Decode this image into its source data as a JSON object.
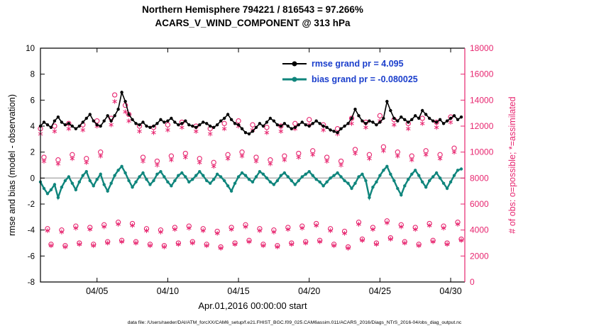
{
  "chart_data": {
    "type": "line",
    "title": "Northern Hemisphere 794221 / 816543 = 97.266%",
    "subtitle": "ACARS_V_WIND_COMPONENT @ 313 hPa",
    "xlabel": "Apr.01,2016 00:00:00 start",
    "ylabel_left": "rmse and bias (model - observation)",
    "ylabel_right": "# of obs: o=possible; *=assimilated",
    "footnote": "data file: /Users/raeder/DAI/ATM_forcXX/CAM6_setup/f.e21.FHIST_BGC.f09_025.CAM6assim.011/ACARS_2016/Diags_NTrS_2016-04/obs_diag_output.nc",
    "grid": false,
    "zero_line": true,
    "legend_position": "top-center-inside",
    "xlim_days": [
      1,
      31
    ],
    "ylim_left": [
      -8,
      10
    ],
    "ylim_right": [
      0,
      18000
    ],
    "yticks_left": [
      -8,
      -6,
      -4,
      -2,
      0,
      2,
      4,
      6,
      8,
      10
    ],
    "yticks_right": [
      0,
      2000,
      4000,
      6000,
      8000,
      10000,
      12000,
      14000,
      16000,
      18000
    ],
    "xticks": [
      {
        "day": 5,
        "label": "04/05"
      },
      {
        "day": 10,
        "label": "04/10"
      },
      {
        "day": 15,
        "label": "04/15"
      },
      {
        "day": 20,
        "label": "04/20"
      },
      {
        "day": 25,
        "label": "04/25"
      },
      {
        "day": 30,
        "label": "04/30"
      }
    ],
    "x_start": 1,
    "x_step": 0.25,
    "n_points": 120,
    "legend": [
      {
        "series": "rmse",
        "label": "rmse grand pr = 4.095"
      },
      {
        "series": "bias",
        "label": "bias grand pr = -0.080025"
      }
    ],
    "colors": {
      "rmse": "#000000",
      "bias": "#0f857c",
      "obs": "#e7256f",
      "legend_text": "#1a3ecc",
      "zero_line": "#b5b5b5",
      "axis": "#000000"
    },
    "series": [
      {
        "name": "rmse",
        "axis": "left",
        "marker": "filled-circle",
        "color": "#000000",
        "values": [
          4.0,
          4.3,
          4.1,
          3.9,
          4.4,
          4.7,
          4.3,
          4.1,
          4.2,
          4.0,
          3.8,
          4.0,
          4.3,
          4.6,
          4.9,
          4.4,
          4.1,
          4.0,
          4.4,
          4.8,
          4.4,
          4.8,
          5.3,
          6.6,
          5.9,
          4.9,
          4.5,
          4.2,
          4.1,
          4.3,
          4.0,
          3.9,
          4.0,
          4.2,
          4.5,
          4.3,
          4.4,
          4.6,
          4.3,
          4.1,
          4.2,
          4.4,
          4.1,
          4.0,
          3.9,
          4.1,
          4.3,
          4.2,
          4.0,
          3.9,
          4.1,
          4.4,
          4.6,
          4.9,
          4.5,
          4.2,
          4.1,
          3.8,
          3.5,
          3.4,
          3.6,
          3.9,
          4.2,
          4.0,
          4.3,
          4.6,
          4.4,
          4.1,
          4.0,
          4.2,
          4.0,
          3.8,
          3.9,
          4.1,
          4.3,
          4.1,
          4.0,
          4.2,
          4.4,
          4.2,
          4.0,
          3.9,
          3.7,
          3.6,
          3.5,
          3.8,
          4.0,
          4.2,
          4.6,
          5.3,
          4.8,
          4.4,
          4.2,
          4.4,
          4.3,
          4.1,
          4.3,
          4.6,
          5.9,
          5.2,
          4.6,
          4.4,
          4.7,
          4.5,
          4.3,
          4.5,
          4.8,
          4.6,
          5.2,
          4.9,
          4.6,
          4.4,
          4.3,
          4.5,
          4.2,
          4.4,
          4.6,
          4.8,
          4.5,
          4.7
        ]
      },
      {
        "name": "bias",
        "axis": "left",
        "marker": "filled-circle",
        "color": "#0f857c",
        "values": [
          -0.3,
          -0.8,
          -1.2,
          -0.9,
          -0.5,
          -1.5,
          -0.7,
          -0.2,
          0.1,
          -0.4,
          -0.9,
          -0.3,
          0.2,
          0.5,
          -0.2,
          -0.6,
          -0.1,
          0.3,
          -0.5,
          -1.0,
          -0.4,
          0.2,
          0.6,
          0.9,
          0.4,
          -0.2,
          -0.7,
          -0.3,
          0.1,
          0.4,
          -0.1,
          -0.5,
          -0.2,
          0.3,
          0.5,
          0.1,
          -0.3,
          -0.6,
          -0.2,
          0.2,
          0.4,
          0.1,
          -0.3,
          -0.1,
          0.2,
          0.5,
          0.2,
          -0.2,
          -0.4,
          -0.1,
          0.3,
          0.1,
          -0.2,
          -0.6,
          -1.0,
          -0.4,
          0.1,
          0.4,
          0.2,
          -0.1,
          -0.3,
          0.1,
          0.5,
          0.3,
          0.0,
          -0.3,
          -0.5,
          -0.2,
          0.2,
          0.4,
          0.1,
          -0.2,
          -0.5,
          -0.2,
          0.1,
          0.3,
          0.5,
          0.2,
          -0.1,
          -0.3,
          -0.6,
          -0.3,
          0.0,
          0.2,
          0.4,
          0.1,
          -0.2,
          -0.4,
          -0.8,
          -0.4,
          0.1,
          0.3,
          -0.2,
          -1.5,
          -0.7,
          -0.3,
          0.2,
          0.6,
          0.9,
          0.3,
          -0.2,
          -0.8,
          -1.3,
          -0.6,
          -0.1,
          0.3,
          0.6,
          0.2,
          -0.3,
          -0.7,
          -0.2,
          0.1,
          0.4,
          0.0,
          -0.4,
          -0.8,
          -0.3,
          0.2,
          0.6,
          0.7
        ]
      },
      {
        "name": "possible",
        "axis": "right",
        "marker": "open-circle",
        "color": "#e7256f",
        "values": [
          11800,
          9600,
          4100,
          2900,
          12000,
          9400,
          4000,
          2800,
          12200,
          9800,
          4300,
          3000,
          12100,
          9500,
          4200,
          2900,
          12400,
          10000,
          4400,
          3100,
          12600,
          14400,
          4600,
          3200,
          13600,
          12900,
          4500,
          3100,
          12000,
          9600,
          4100,
          2900,
          11900,
          9300,
          4000,
          2800,
          12100,
          9700,
          4200,
          3000,
          12300,
          9900,
          4300,
          3100,
          12000,
          9500,
          4100,
          2900,
          11800,
          9200,
          3900,
          2700,
          12200,
          9800,
          4200,
          3000,
          12400,
          10000,
          4400,
          3200,
          12100,
          9600,
          4100,
          2900,
          11900,
          9400,
          4000,
          2800,
          12000,
          9700,
          4200,
          3000,
          12200,
          9900,
          4300,
          3100,
          12500,
          10100,
          4500,
          3200,
          12100,
          9600,
          4100,
          2900,
          11800,
          9300,
          3900,
          2700,
          12600,
          10200,
          4600,
          3300,
          12300,
          9800,
          4200,
          3000,
          12800,
          10400,
          4700,
          3400,
          12500,
          10000,
          4400,
          3100,
          12200,
          9700,
          4200,
          2900,
          12600,
          10100,
          4500,
          3200,
          12300,
          9800,
          4300,
          3000,
          12700,
          10300,
          4600,
          3300
        ]
      },
      {
        "name": "assimilated",
        "axis": "right",
        "marker": "asterisk",
        "color": "#e7256f",
        "values": [
          11400,
          9300,
          3950,
          2800,
          11600,
          9100,
          3850,
          2700,
          11800,
          9500,
          4150,
          2900,
          11700,
          9200,
          4050,
          2800,
          12000,
          9700,
          4250,
          3000,
          12100,
          13900,
          4450,
          3100,
          13100,
          12400,
          4350,
          3000,
          11600,
          9300,
          3950,
          2800,
          11500,
          9000,
          3850,
          2700,
          11700,
          9400,
          4050,
          2900,
          11900,
          9600,
          4150,
          3000,
          11600,
          9200,
          3950,
          2800,
          11400,
          8900,
          3750,
          2600,
          11800,
          9500,
          4050,
          2900,
          12000,
          9700,
          4250,
          3100,
          11700,
          9300,
          3950,
          2800,
          11500,
          9100,
          3850,
          2700,
          11600,
          9400,
          4050,
          2900,
          11800,
          9600,
          4150,
          3000,
          12100,
          9800,
          4350,
          3100,
          11700,
          9300,
          3950,
          2800,
          11400,
          9000,
          3750,
          2600,
          12200,
          9900,
          4450,
          3200,
          11900,
          9500,
          4050,
          2900,
          12400,
          10100,
          4550,
          3300,
          12100,
          9700,
          4250,
          3000,
          11800,
          9400,
          4050,
          2800,
          12200,
          9800,
          4350,
          3100,
          11900,
          9500,
          4150,
          2900,
          12300,
          10000,
          4450,
          3200
        ]
      }
    ]
  }
}
